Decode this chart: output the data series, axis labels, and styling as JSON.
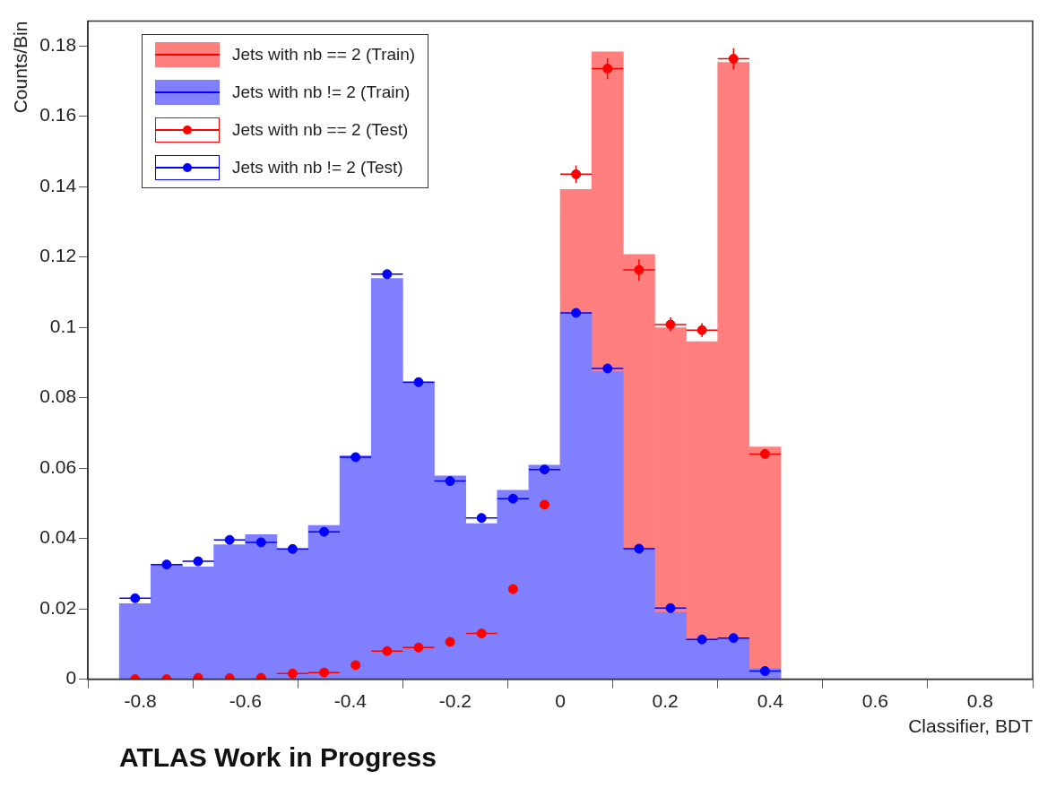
{
  "chart_data": {
    "type": "histogram",
    "xlabel": "Classifier, BDT",
    "ylabel": "Counts/Bin",
    "annotations": [
      "ATLAS Work in Progress"
    ],
    "bins": [
      -0.84,
      -0.78,
      -0.72,
      -0.66,
      -0.6,
      -0.54,
      -0.48,
      -0.42,
      -0.36,
      -0.3,
      -0.24,
      -0.18,
      -0.12,
      -0.06,
      0,
      0.06,
      0.12,
      0.18,
      0.24,
      0.3,
      0.36,
      0.42
    ],
    "series": [
      {
        "name": "Jets with nb == 2 (Train)",
        "color": "#ff7f7f",
        "values": [
          null,
          null,
          null,
          null,
          null,
          null,
          null,
          null,
          null,
          null,
          null,
          null,
          null,
          null,
          0.1392,
          0.1783,
          0.1207,
          0.0999,
          0.0959,
          0.1753,
          0.066
        ]
      },
      {
        "name": "Jets with nb != 2 (Train)",
        "color": "#8080ff",
        "values": [
          0.0215,
          0.0326,
          0.0319,
          0.0382,
          0.0411,
          0.037,
          0.0437,
          0.0635,
          0.1139,
          0.0844,
          0.0578,
          0.0442,
          0.0537,
          0.0608,
          0.1041,
          0.0874,
          0.0371,
          0.019,
          0.0113,
          0.0117,
          0.003
        ]
      },
      {
        "name": "Jets with nb == 2 (Test)",
        "type": "scatter",
        "color": "#ff0000",
        "x": [
          -0.81,
          -0.75,
          -0.69,
          -0.63,
          -0.57,
          -0.51,
          -0.45,
          -0.39,
          -0.33,
          -0.27,
          -0.21,
          -0.15,
          -0.09,
          -0.03,
          0.03,
          0.09,
          0.15,
          0.21,
          0.27,
          0.33,
          0.39
        ],
        "values": [
          0,
          0,
          0.0004,
          0.0003,
          0.0004,
          0.0016,
          0.0019,
          0.004,
          0.008,
          0.009,
          0.0106,
          0.013,
          0.0256,
          0.0496,
          0.1435,
          0.1735,
          0.1163,
          0.1008,
          0.0992,
          0.1763,
          0.064
        ],
        "xerrors": [
          null,
          null,
          null,
          null,
          null,
          0.03,
          0.03,
          null,
          0.03,
          0.03,
          null,
          0.03,
          null,
          null,
          0.03,
          0.03,
          0.03,
          0.03,
          0.03,
          0.03,
          0.03
        ],
        "errors": [
          null,
          null,
          null,
          null,
          null,
          null,
          null,
          null,
          null,
          null,
          null,
          null,
          null,
          null,
          0.0025,
          0.003,
          0.003,
          0.002,
          0.002,
          0.003,
          null
        ]
      },
      {
        "name": "Jets with nb != 2 (Test)",
        "type": "scatter",
        "color": "#0000ff",
        "x": [
          -0.81,
          -0.75,
          -0.69,
          -0.63,
          -0.57,
          -0.51,
          -0.45,
          -0.39,
          -0.33,
          -0.27,
          -0.21,
          -0.15,
          -0.09,
          -0.03,
          0.03,
          0.09,
          0.15,
          0.21,
          0.27,
          0.33,
          0.39
        ],
        "values": [
          0.023,
          0.0326,
          0.0335,
          0.0396,
          0.0389,
          0.037,
          0.0419,
          0.0631,
          0.1151,
          0.0844,
          0.0563,
          0.0458,
          0.0513,
          0.0596,
          0.1041,
          0.0883,
          0.0371,
          0.0202,
          0.0113,
          0.0117,
          0.0023
        ],
        "xerrors": [
          0.03,
          0.03,
          0.03,
          0.03,
          0.03,
          0.03,
          0.03,
          0.03,
          0.03,
          0.03,
          0.03,
          0.03,
          0.03,
          0.03,
          0.03,
          0.03,
          0.03,
          0.03,
          0.03,
          0.03,
          0.03
        ]
      }
    ],
    "xlim": [
      -0.9,
      0.9
    ],
    "xticks": [
      -0.8,
      -0.6,
      -0.4,
      -0.2,
      0,
      0.2,
      0.4,
      0.6,
      0.8
    ],
    "ylim": [
      0,
      0.187
    ],
    "yticks": [
      0,
      0.02,
      0.04,
      0.06,
      0.08,
      0.1,
      0.12,
      0.14,
      0.16,
      0.18
    ],
    "legend": "top left",
    "marker": "circle"
  }
}
